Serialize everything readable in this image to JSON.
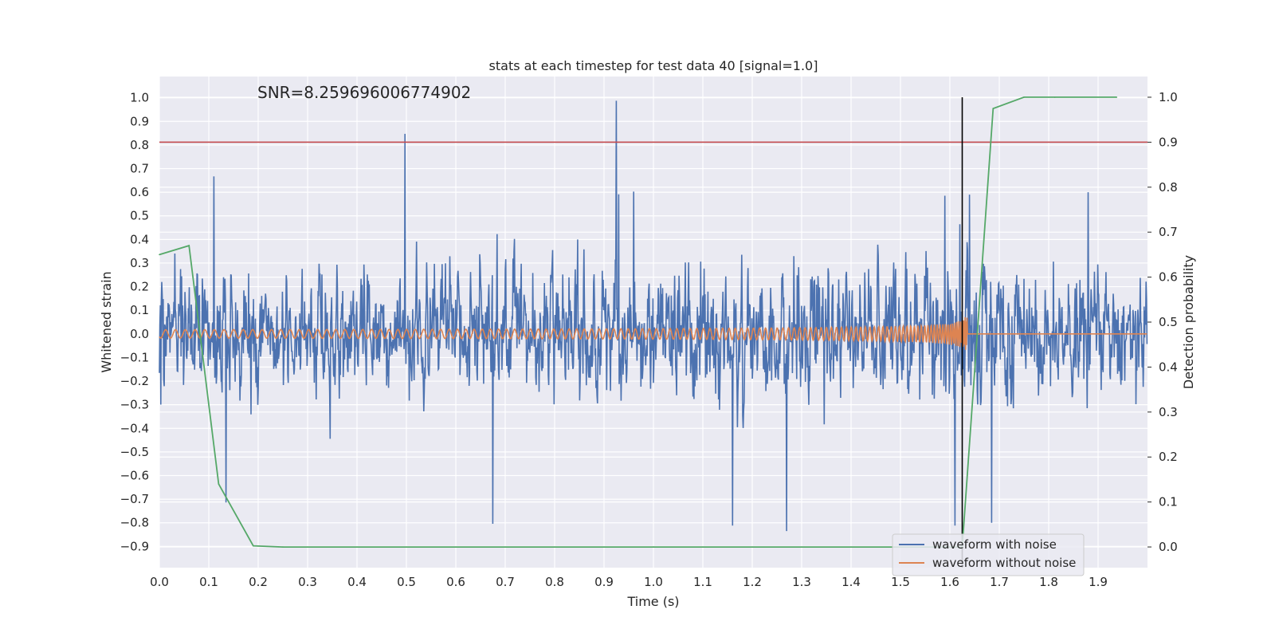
{
  "chart_data": {
    "type": "line",
    "title": "stats at each timestep for test data 40 [signal=1.0]",
    "annotation": "SNR=8.259696006774902",
    "xlabel": "Time (s)",
    "ylabel": "Whitened strain",
    "y2label": "Detection probability",
    "xlim": [
      0.0,
      2.0
    ],
    "ylim": [
      -0.99,
      1.09
    ],
    "y2lim": [
      -0.046,
      1.046
    ],
    "xticks": [
      "0.0",
      "0.1",
      "0.2",
      "0.3",
      "0.4",
      "0.5",
      "0.6",
      "0.7",
      "0.8",
      "0.9",
      "1.0",
      "1.1",
      "1.2",
      "1.3",
      "1.4",
      "1.5",
      "1.6",
      "1.7",
      "1.8",
      "1.9"
    ],
    "yticks": [
      "1.0",
      "0.9",
      "0.8",
      "0.7",
      "0.6",
      "0.5",
      "0.4",
      "0.3",
      "0.2",
      "0.1",
      "0.0",
      "−0.1",
      "−0.2",
      "−0.3",
      "−0.4",
      "−0.5",
      "−0.6",
      "−0.7",
      "−0.8",
      "−0.9"
    ],
    "y2ticks": [
      "1.0",
      "0.9",
      "0.8",
      "0.7",
      "0.6",
      "0.5",
      "0.4",
      "0.3",
      "0.2",
      "0.1",
      "0.0"
    ],
    "grid": true,
    "legend_position": "lower-right",
    "threshold": 0.9,
    "event_time": 1.625,
    "series": [
      {
        "name": "waveform with noise",
        "color": "#4c72b0",
        "axis": "left",
        "description": "noisy whitened strain, amplitude mostly within ±0.5 with peaks of 1.0 near 0.925 s and 0.84 near 0.5 s"
      },
      {
        "name": "waveform without noise",
        "color": "#dd8452",
        "axis": "left",
        "description": "chirp signal growing in amplitude and frequency, merging at ~1.63 s then zero"
      },
      {
        "name": "",
        "color": "#55a868",
        "axis": "right",
        "x": [
          0.0,
          0.06,
          0.12,
          0.19,
          0.25,
          1.0,
          1.5,
          1.625,
          1.6875,
          1.75,
          1.8125,
          1.9375
        ],
        "values": [
          0.65,
          0.67,
          0.14,
          0.0025,
          0.0,
          0.0,
          0.0,
          0.0,
          0.975,
          1.0,
          1.0,
          1.0
        ]
      }
    ],
    "colors": {
      "background": "#eaeaf2",
      "grid": "#ffffff",
      "threshold": "#c44e52",
      "event_line": "#000000"
    }
  }
}
